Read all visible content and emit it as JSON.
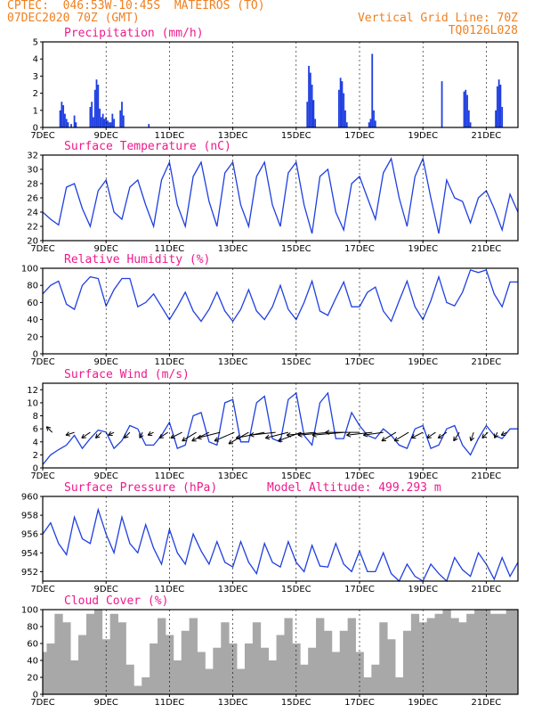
{
  "header": {
    "left_line1": "CPTEC:  046:53W-10:45S  MATEIROS (TO)",
    "left_line2": "07DEC2020 70Z (GMT)",
    "right_line1": "Vertical Grid Line: 70Z",
    "right_line2": "TQ0126L028"
  },
  "x_ticks": [
    "7DEC",
    "9DEC",
    "11DEC",
    "13DEC",
    "15DEC",
    "17DEC",
    "19DEC",
    "21DEC"
  ],
  "colors": {
    "series": "#1f3fe0",
    "bars": "#1f3fe0",
    "cloud": "#a8a8a8",
    "title": "#ee1a8c",
    "header": "#f08020"
  },
  "chart_data": [
    {
      "type": "bar",
      "title": "Precipitation (mm/h)",
      "x_unit": "days since 7DEC 00Z",
      "xlim": [
        0,
        15
      ],
      "ylim": [
        0,
        5
      ],
      "yticks": [
        "0",
        "1",
        "2",
        "3",
        "4",
        "5"
      ],
      "x": [
        0.55,
        0.6,
        0.65,
        0.7,
        0.75,
        0.8,
        0.9,
        1.0,
        1.05,
        1.5,
        1.55,
        1.6,
        1.65,
        1.7,
        1.75,
        1.8,
        1.85,
        1.9,
        1.95,
        2.0,
        2.05,
        2.1,
        2.15,
        2.2,
        2.25,
        2.45,
        2.5,
        2.55,
        3.35,
        8.35,
        8.4,
        8.45,
        8.5,
        8.55,
        8.6,
        9.35,
        9.4,
        9.45,
        9.5,
        9.55,
        9.6,
        10.3,
        10.35,
        10.4,
        10.45,
        10.5,
        12.6,
        13.3,
        13.35,
        13.4,
        13.45,
        13.5,
        14.3,
        14.35,
        14.4,
        14.45,
        14.5
      ],
      "values": [
        1.0,
        1.5,
        1.3,
        0.8,
        0.5,
        0.3,
        0.2,
        0.7,
        0.3,
        1.2,
        1.5,
        0.6,
        2.2,
        2.8,
        2.5,
        1.1,
        0.6,
        0.8,
        0.5,
        0.6,
        0.4,
        0.3,
        0.3,
        0.8,
        0.5,
        1.0,
        1.5,
        0.7,
        0.2,
        1.5,
        3.6,
        3.2,
        2.5,
        1.6,
        0.5,
        2.2,
        2.9,
        2.7,
        2.0,
        1.0,
        0.3,
        0.3,
        0.5,
        4.3,
        1.0,
        0.4,
        2.7,
        2.1,
        2.2,
        1.9,
        1.0,
        0.3,
        1.0,
        2.4,
        2.8,
        2.5,
        1.2
      ]
    },
    {
      "type": "line",
      "title": "Surface Temperature (nC)",
      "x_unit": "days since 7DEC 00Z",
      "xlim": [
        0,
        15
      ],
      "ylim": [
        20,
        32
      ],
      "yticks": [
        "20",
        "22",
        "24",
        "26",
        "28",
        "30",
        "32"
      ],
      "x": [
        0.0,
        0.25,
        0.5,
        0.75,
        1.0,
        1.25,
        1.5,
        1.75,
        2.0,
        2.25,
        2.5,
        2.75,
        3.0,
        3.25,
        3.5,
        3.75,
        4.0,
        4.25,
        4.5,
        4.75,
        5.0,
        5.25,
        5.5,
        5.75,
        6.0,
        6.25,
        6.5,
        6.75,
        7.0,
        7.25,
        7.5,
        7.75,
        8.0,
        8.25,
        8.5,
        8.75,
        9.0,
        9.25,
        9.5,
        9.75,
        10.0,
        10.25,
        10.5,
        10.75,
        11.0,
        11.25,
        11.5,
        11.75,
        12.0,
        12.25,
        12.5,
        12.75,
        13.0,
        13.25,
        13.5,
        13.75,
        14.0,
        14.25,
        14.5,
        14.75,
        15.0
      ],
      "values": [
        24.0,
        23.0,
        22.2,
        27.5,
        28.0,
        24.5,
        22.0,
        27.0,
        28.5,
        24.0,
        23.0,
        27.5,
        28.5,
        25.0,
        22.0,
        28.5,
        31.0,
        25.0,
        22.0,
        29.0,
        31.0,
        25.5,
        22.0,
        29.5,
        31.0,
        25.0,
        22.0,
        29.0,
        31.0,
        25.0,
        22.0,
        29.5,
        31.0,
        25.0,
        21.0,
        29.0,
        30.0,
        24.0,
        21.5,
        28.0,
        29.0,
        26.0,
        23.0,
        29.5,
        31.5,
        26.0,
        22.0,
        29.0,
        31.5,
        26.0,
        21.0,
        28.5,
        26.0,
        25.5,
        22.5,
        26.0,
        27.0,
        24.5,
        21.5,
        26.5,
        24.0
      ]
    },
    {
      "type": "line",
      "title": "Relative Humidity (%)",
      "x_unit": "days since 7DEC 00Z",
      "xlim": [
        0,
        15
      ],
      "ylim": [
        0,
        100
      ],
      "yticks": [
        "0",
        "20",
        "40",
        "60",
        "80",
        "100"
      ],
      "x": [
        0.0,
        0.25,
        0.5,
        0.75,
        1.0,
        1.25,
        1.5,
        1.75,
        2.0,
        2.25,
        2.5,
        2.75,
        3.0,
        3.25,
        3.5,
        3.75,
        4.0,
        4.25,
        4.5,
        4.75,
        5.0,
        5.25,
        5.5,
        5.75,
        6.0,
        6.25,
        6.5,
        6.75,
        7.0,
        7.25,
        7.5,
        7.75,
        8.0,
        8.25,
        8.5,
        8.75,
        9.0,
        9.25,
        9.5,
        9.75,
        10.0,
        10.25,
        10.5,
        10.75,
        11.0,
        11.25,
        11.5,
        11.75,
        12.0,
        12.25,
        12.5,
        12.75,
        13.0,
        13.25,
        13.5,
        13.75,
        14.0,
        14.25,
        14.5,
        14.75,
        15.0
      ],
      "values": [
        70.0,
        80.0,
        85.0,
        58.0,
        52.0,
        80.0,
        90.0,
        88.0,
        56.0,
        75.0,
        88.0,
        88.0,
        55.0,
        60.0,
        70.0,
        55.0,
        40.0,
        55.0,
        72.0,
        50.0,
        38.0,
        52.0,
        72.0,
        50.0,
        38.0,
        52.0,
        75.0,
        50.0,
        40.0,
        55.0,
        80.0,
        52.0,
        40.0,
        60.0,
        85.0,
        50.0,
        45.0,
        65.0,
        84.0,
        55.0,
        55.0,
        72.0,
        78.0,
        50.0,
        38.0,
        62.0,
        85.0,
        55.0,
        40.0,
        62.0,
        90.0,
        60.0,
        56.0,
        72.0,
        98.0,
        95.0,
        98.0,
        70.0,
        55.0,
        84.0,
        84.0
      ]
    },
    {
      "type": "line",
      "title": "Surface Wind (m/s)",
      "x_unit": "days since 7DEC 00Z",
      "xlim": [
        0,
        15
      ],
      "ylim": [
        0,
        13
      ],
      "yticks": [
        "0",
        "2",
        "4",
        "6",
        "8",
        "10",
        "12"
      ],
      "x": [
        0.0,
        0.25,
        0.5,
        0.75,
        1.0,
        1.25,
        1.5,
        1.75,
        2.0,
        2.25,
        2.5,
        2.75,
        3.0,
        3.25,
        3.5,
        3.75,
        4.0,
        4.25,
        4.5,
        4.75,
        5.0,
        5.25,
        5.5,
        5.75,
        6.0,
        6.25,
        6.5,
        6.75,
        7.0,
        7.25,
        7.5,
        7.75,
        8.0,
        8.25,
        8.5,
        8.75,
        9.0,
        9.25,
        9.5,
        9.75,
        10.0,
        10.25,
        10.5,
        10.75,
        11.0,
        11.25,
        11.5,
        11.75,
        12.0,
        12.25,
        12.5,
        12.75,
        13.0,
        13.25,
        13.5,
        13.75,
        14.0,
        14.25,
        14.5,
        14.75,
        15.0
      ],
      "values": [
        0.5,
        2.0,
        2.8,
        3.5,
        5.0,
        3.0,
        4.5,
        5.8,
        5.5,
        3.0,
        4.2,
        6.5,
        6.0,
        3.5,
        3.5,
        5.0,
        7.0,
        3.0,
        3.5,
        8.0,
        8.5,
        4.0,
        3.5,
        10.0,
        10.5,
        4.0,
        4.0,
        10.0,
        11.0,
        4.5,
        4.0,
        10.5,
        11.5,
        5.0,
        3.5,
        10.0,
        11.5,
        4.5,
        4.5,
        8.5,
        6.5,
        5.0,
        4.5,
        6.0,
        5.0,
        3.5,
        3.0,
        6.0,
        6.5,
        3.0,
        3.5,
        6.0,
        6.5,
        3.5,
        2.0,
        4.5,
        6.5,
        5.0,
        4.5,
        6.0,
        6.0
      ],
      "vectors_x": [
        0.3,
        1.0,
        1.5,
        1.85,
        2.25,
        2.75,
        3.15,
        3.5,
        3.95,
        4.4,
        4.85,
        5.25,
        5.6,
        6.05,
        6.5,
        7.0,
        7.35,
        7.75,
        8.15,
        8.6,
        9.05,
        9.5,
        10.0,
        10.4,
        10.75,
        11.15,
        11.55,
        12.0,
        12.4,
        12.75,
        13.15,
        13.6,
        14.05,
        14.35,
        14.65
      ],
      "vectors_u": [
        2,
        3,
        3,
        2,
        2,
        2,
        1,
        2,
        3,
        4,
        5,
        6,
        8,
        7,
        7,
        10,
        9,
        8,
        8,
        10,
        11,
        11,
        12,
        9,
        7,
        5,
        5,
        4,
        3,
        3,
        2,
        1,
        2,
        1,
        2
      ],
      "vectors_v": [
        -2,
        1,
        2,
        2,
        1,
        2,
        2,
        1,
        2,
        2,
        3,
        3,
        2,
        3,
        4,
        2,
        1,
        2,
        3,
        1,
        1,
        1,
        0,
        1,
        1,
        3,
        3,
        2,
        2,
        2,
        3,
        3,
        2,
        2,
        1
      ]
    },
    {
      "type": "line",
      "title": "Surface Pressure (hPa)",
      "annotation": "Model Altitude: 499.293 m",
      "x_unit": "days since 7DEC 00Z",
      "xlim": [
        0,
        15
      ],
      "ylim": [
        951,
        960
      ],
      "yticks": [
        "952",
        "954",
        "956",
        "958",
        "960"
      ],
      "x": [
        0.0,
        0.25,
        0.5,
        0.75,
        1.0,
        1.25,
        1.5,
        1.75,
        2.0,
        2.25,
        2.5,
        2.75,
        3.0,
        3.25,
        3.5,
        3.75,
        4.0,
        4.25,
        4.5,
        4.75,
        5.0,
        5.25,
        5.5,
        5.75,
        6.0,
        6.25,
        6.5,
        6.75,
        7.0,
        7.25,
        7.5,
        7.75,
        8.0,
        8.25,
        8.5,
        8.75,
        9.0,
        9.25,
        9.5,
        9.75,
        10.0,
        10.25,
        10.5,
        10.75,
        11.0,
        11.25,
        11.5,
        11.75,
        12.0,
        12.25,
        12.5,
        12.75,
        13.0,
        13.25,
        13.5,
        13.75,
        14.0,
        14.25,
        14.5,
        14.75,
        15.0
      ],
      "values": [
        956.0,
        957.2,
        955.0,
        953.8,
        957.8,
        955.5,
        955.0,
        958.6,
        956.0,
        954.0,
        957.8,
        955.0,
        954.0,
        957.0,
        954.5,
        952.8,
        956.5,
        954.0,
        952.8,
        956.0,
        954.2,
        952.8,
        955.2,
        953.0,
        952.5,
        955.2,
        953.0,
        951.8,
        955.0,
        953.0,
        952.5,
        955.2,
        953.0,
        952.0,
        954.8,
        952.6,
        952.5,
        955.0,
        952.8,
        952.0,
        954.2,
        952.0,
        952.0,
        954.0,
        951.8,
        951.0,
        952.8,
        951.5,
        951.0,
        952.8,
        951.8,
        951.0,
        953.5,
        952.2,
        951.5,
        954.0,
        952.8,
        951.2,
        953.5,
        951.5,
        953.0
      ]
    },
    {
      "type": "bar",
      "title": "Cloud Cover (%)",
      "x_unit": "days since 7DEC 00Z",
      "xlim": [
        0,
        15
      ],
      "ylim": [
        0,
        100
      ],
      "yticks": [
        "0",
        "20",
        "40",
        "60",
        "80",
        "100"
      ],
      "x": [
        0.0,
        0.25,
        0.5,
        0.75,
        1.0,
        1.25,
        1.5,
        1.75,
        2.0,
        2.25,
        2.5,
        2.75,
        3.0,
        3.25,
        3.5,
        3.75,
        4.0,
        4.25,
        4.5,
        4.75,
        5.0,
        5.25,
        5.5,
        5.75,
        6.0,
        6.25,
        6.5,
        6.75,
        7.0,
        7.25,
        7.5,
        7.75,
        8.0,
        8.25,
        8.5,
        8.75,
        9.0,
        9.25,
        9.5,
        9.75,
        10.0,
        10.25,
        10.5,
        10.75,
        11.0,
        11.25,
        11.5,
        11.75,
        12.0,
        12.25,
        12.5,
        12.75,
        13.0,
        13.25,
        13.5,
        13.75,
        14.0,
        14.25,
        14.5,
        14.75,
        15.0
      ],
      "values": [
        50,
        60,
        95,
        85,
        40,
        70,
        95,
        100,
        65,
        95,
        85,
        35,
        10,
        20,
        60,
        90,
        70,
        40,
        75,
        90,
        50,
        30,
        55,
        85,
        60,
        30,
        60,
        85,
        55,
        40,
        70,
        90,
        60,
        35,
        55,
        90,
        75,
        50,
        75,
        90,
        50,
        20,
        35,
        85,
        65,
        20,
        75,
        95,
        85,
        90,
        95,
        100,
        90,
        85,
        95,
        100,
        100,
        95,
        95,
        100,
        100
      ]
    }
  ]
}
